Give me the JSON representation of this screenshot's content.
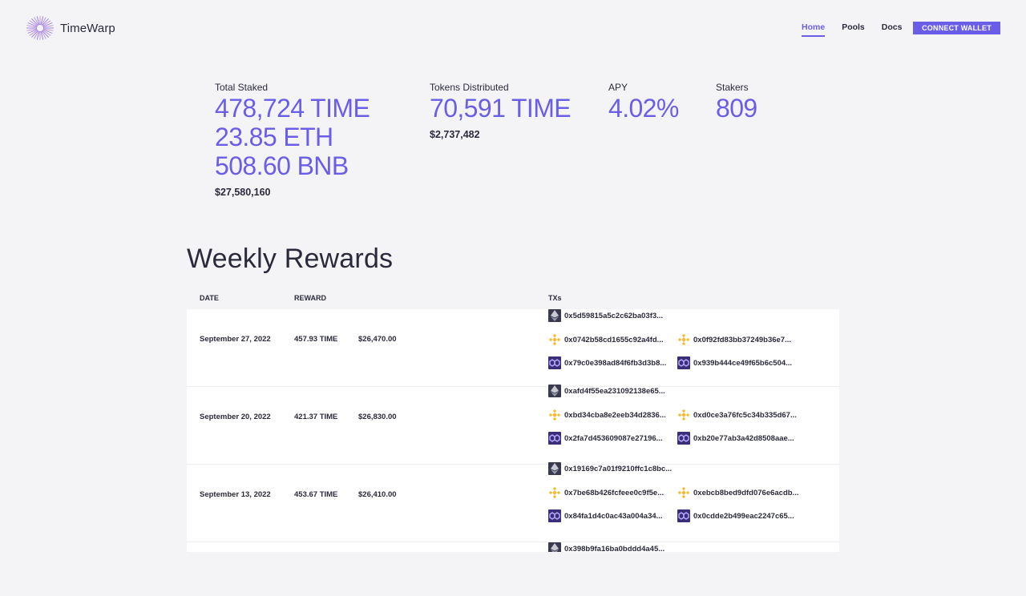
{
  "app": {
    "name": "TimeWarp"
  },
  "nav": {
    "items": [
      {
        "label": "Home",
        "active": true
      },
      {
        "label": "Pools",
        "active": false
      },
      {
        "label": "Docs",
        "active": false
      }
    ],
    "connect_label": "CONNECT WALLET"
  },
  "colors": {
    "accent": "#6a5ee8",
    "text": "#2a2a3c",
    "bnb": "#f3ba2f",
    "poly": "#3a2e7a",
    "eth": "#393a4e"
  },
  "stats": {
    "total_staked": {
      "label": "Total Staked",
      "values": [
        "478,724 TIME",
        "23.85 ETH",
        "508.60 BNB"
      ],
      "usd": "$27,580,160"
    },
    "tokens_distributed": {
      "label": "Tokens Distributed",
      "value": "70,591 TIME",
      "usd": "$2,737,482"
    },
    "apy": {
      "label": "APY",
      "value": "4.02%"
    },
    "stakers": {
      "label": "Stakers",
      "value": "809"
    }
  },
  "weekly": {
    "title": "Weekly Rewards",
    "headers": {
      "date": "DATE",
      "reward": "REWARD",
      "txs": "TXs"
    },
    "rows": [
      {
        "date": "September 27, 2022",
        "reward": "457.93 TIME",
        "usd": "$26,470.00",
        "eth_tx": "0x5d59815a5c2c62ba03f3...",
        "bnb_txs": [
          "0x0742b58cd1655c92a4fd...",
          "0x0f92fd83bb37249b36e7..."
        ],
        "poly_txs": [
          "0x79c0e398ad84f6fb3d3b8...",
          "0x939b444ce49f65b6c504..."
        ]
      },
      {
        "date": "September 20, 2022",
        "reward": "421.37 TIME",
        "usd": "$26,830.00",
        "eth_tx": "0xafd4f55ea231092138e65...",
        "bnb_txs": [
          "0xbd34cba8e2eeb34d2836...",
          "0xd0ce3a76fc5c34b335d67..."
        ],
        "poly_txs": [
          "0x2fa7d453609087e27196...",
          "0xb20e77ab3a42d8508aae..."
        ]
      },
      {
        "date": "September 13, 2022",
        "reward": "453.67 TIME",
        "usd": "$26,410.00",
        "eth_tx": "0x19169c7a01f9210ffc1c8bc...",
        "bnb_txs": [
          "0x7be68b426fcfeee0c9f5e...",
          "0xebcb8bed9dfd076e6acdb..."
        ],
        "poly_txs": [
          "0x84fa1d4c0ac43a004a34...",
          "0x0cdde2b499eac2247c65..."
        ]
      },
      {
        "eth_tx": "0x398b9fa16ba0bddd4a45..."
      }
    ]
  }
}
